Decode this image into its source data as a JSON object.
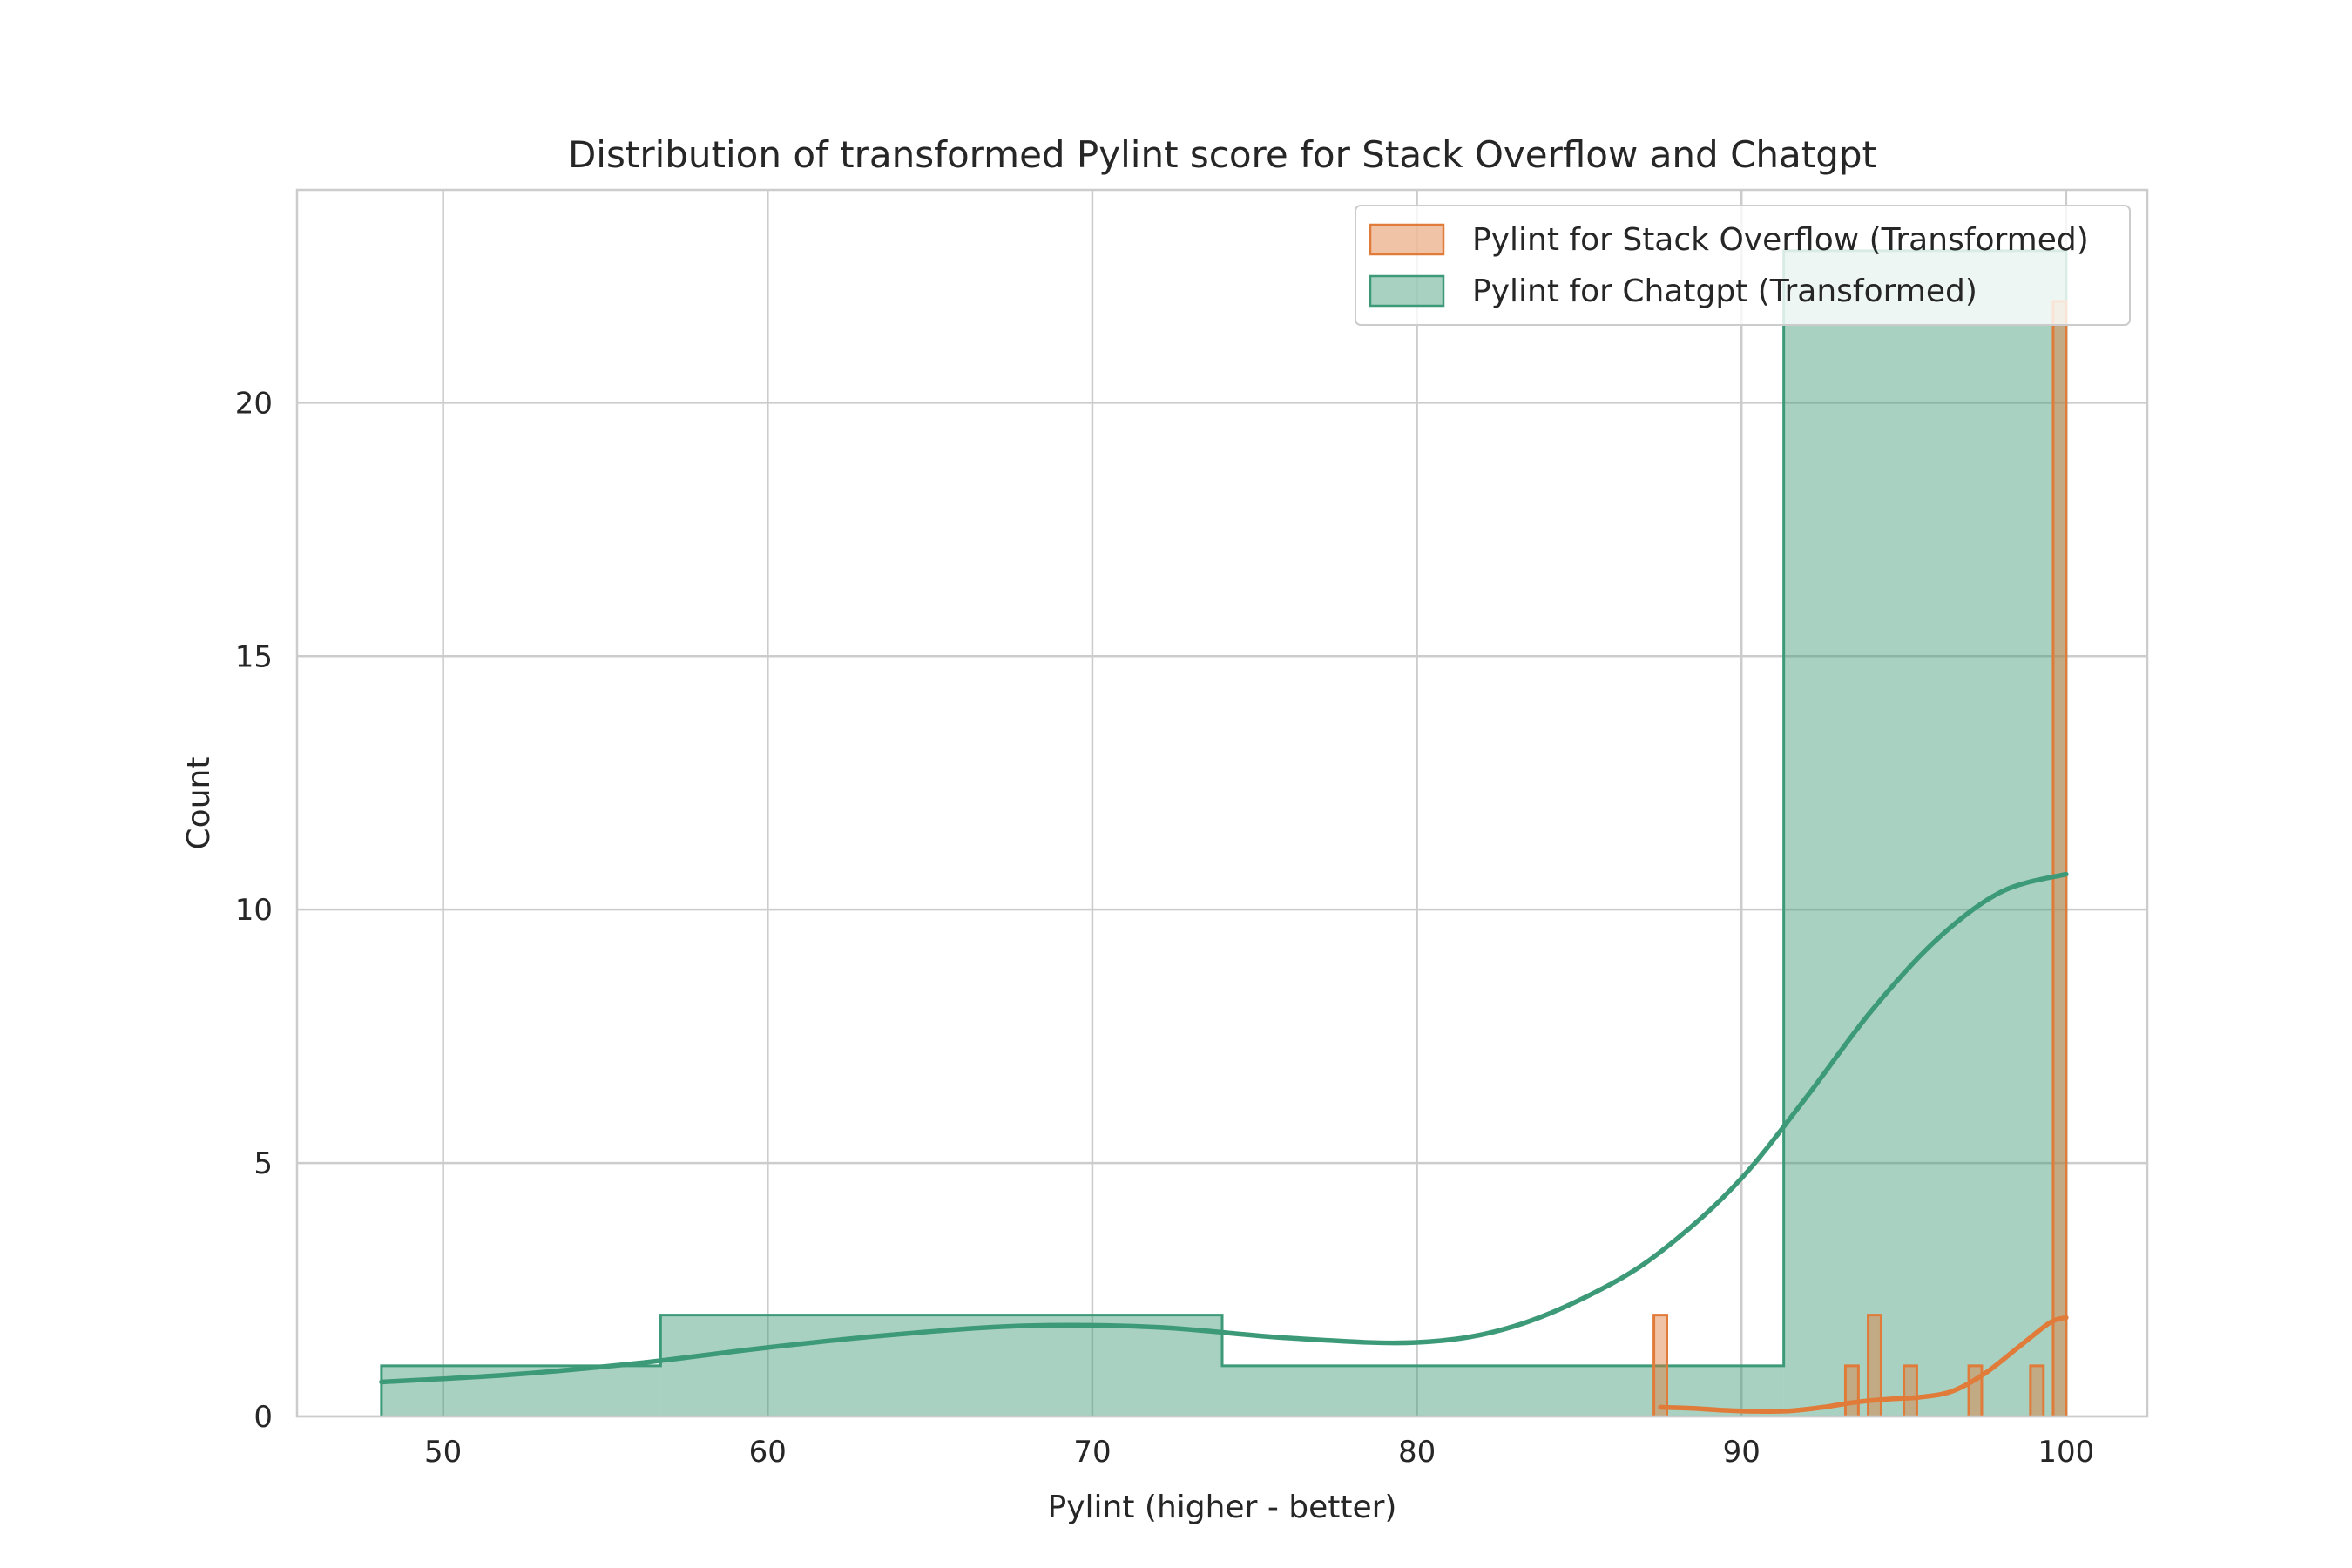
{
  "chart_data": {
    "type": "histogram",
    "title": "Distribution of transformed Pylint score for Stack Overflow and Chatgpt",
    "xlabel": "Pylint (higher - better)",
    "ylabel": "Count",
    "xlim": [
      45.5,
      102.5
    ],
    "ylim": [
      0,
      24.2
    ],
    "x_ticks": [
      50,
      60,
      70,
      80,
      90,
      100
    ],
    "y_ticks": [
      0,
      5,
      10,
      15,
      20
    ],
    "grid": true,
    "legend_position": "upper right",
    "series": [
      {
        "name": "Pylint for Stack Overflow (Transformed)",
        "color": "#e07b39",
        "bins": [
          {
            "x0": 87.3,
            "x1": 87.7,
            "count": 2
          },
          {
            "x0": 93.2,
            "x1": 93.6,
            "count": 1
          },
          {
            "x0": 93.9,
            "x1": 94.3,
            "count": 2
          },
          {
            "x0": 95.0,
            "x1": 95.4,
            "count": 1
          },
          {
            "x0": 97.0,
            "x1": 97.4,
            "count": 1
          },
          {
            "x0": 98.9,
            "x1": 99.3,
            "count": 1
          },
          {
            "x0": 99.6,
            "x1": 100.0,
            "count": 22
          }
        ],
        "kde": {
          "x": [
            87.5,
            88.5,
            89.5,
            90.5,
            91.5,
            92.5,
            93.5,
            94.5,
            95.5,
            96.5,
            97.5,
            98.5,
            99.5,
            100.0
          ],
          "y": [
            0.18,
            0.16,
            0.12,
            0.1,
            0.11,
            0.18,
            0.28,
            0.34,
            0.38,
            0.5,
            0.85,
            1.35,
            1.85,
            1.95
          ]
        }
      },
      {
        "name": "Pylint for Chatgpt (Transformed)",
        "color": "#3d9a78",
        "bins": [
          {
            "x0": 48.1,
            "x1": 56.7,
            "count": 1
          },
          {
            "x0": 56.7,
            "x1": 74.0,
            "count": 2
          },
          {
            "x0": 74.0,
            "x1": 91.3,
            "count": 1
          },
          {
            "x0": 91.3,
            "x1": 100.0,
            "count": 23
          }
        ],
        "kde": {
          "x": [
            48.1,
            52,
            56,
            60,
            64,
            68,
            72,
            76,
            80,
            83,
            86,
            88,
            90,
            92,
            94,
            96,
            98,
            100
          ],
          "y": [
            0.68,
            0.82,
            1.05,
            1.36,
            1.62,
            1.79,
            1.76,
            1.55,
            1.46,
            1.78,
            2.62,
            3.5,
            4.7,
            6.3,
            8.0,
            9.4,
            10.35,
            10.7
          ]
        }
      }
    ]
  }
}
